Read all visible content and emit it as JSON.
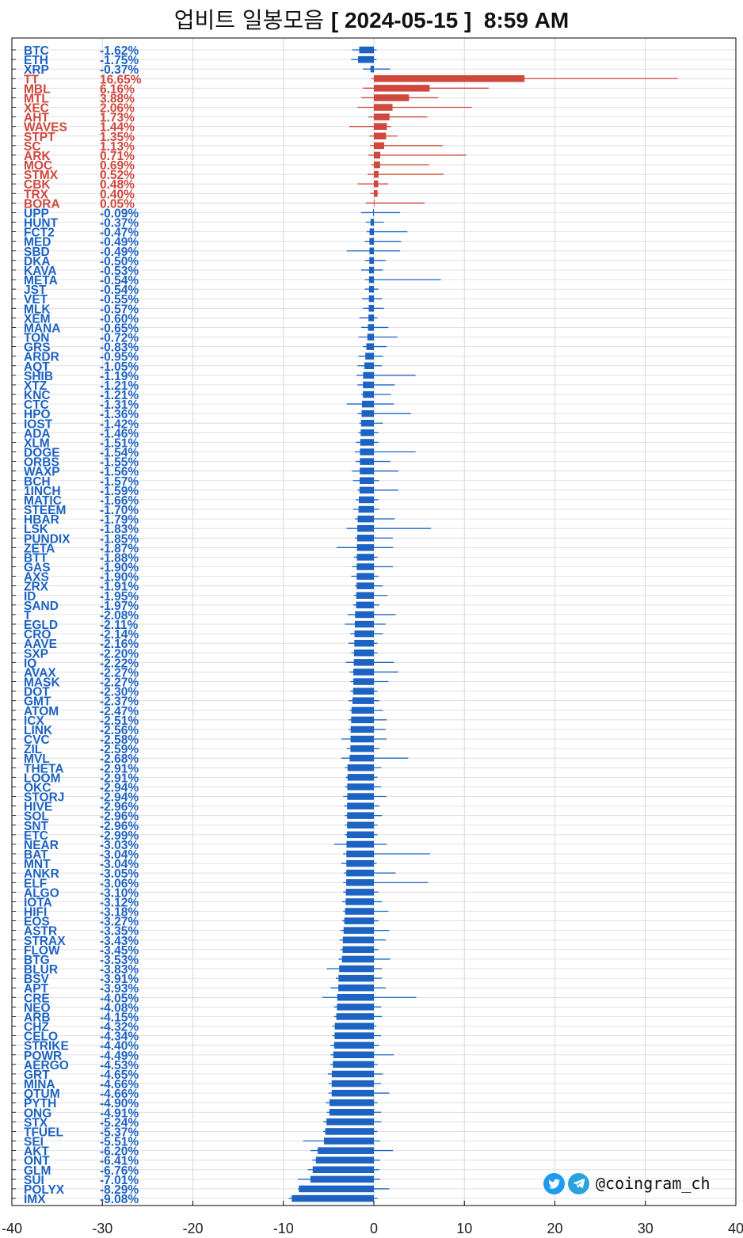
{
  "title": {
    "main": "업비트 일봉모음",
    "bracket_open": "[",
    "date": "2024-05-15",
    "bracket_close": "]",
    "time": "8:59 AM"
  },
  "credit": {
    "handle": "@coingram_ch",
    "icons": [
      "twitter-icon",
      "telegram-icon"
    ]
  },
  "colors": {
    "up": "#d0473d",
    "down": "#1d63c3",
    "grid": "#d9d9d9",
    "axis": "#000000"
  },
  "chart_data": {
    "type": "bar",
    "orientation": "horizontal",
    "xlim": [
      -40,
      40
    ],
    "xticks": [
      -40,
      -30,
      -20,
      -10,
      0,
      10,
      20,
      30,
      40
    ],
    "grid": true,
    "rows": [
      {
        "ticker": "BTC",
        "change": -1.62,
        "low": -2.4,
        "high": 0.3
      },
      {
        "ticker": "ETH",
        "change": -1.75,
        "low": -2.5,
        "high": 0.3
      },
      {
        "ticker": "XRP",
        "change": -0.37,
        "low": -1.2,
        "high": 1.8
      },
      {
        "ticker": "TT",
        "change": 16.65,
        "low": -0.3,
        "high": 33.6
      },
      {
        "ticker": "MBL",
        "change": 6.16,
        "low": -1.2,
        "high": 12.7
      },
      {
        "ticker": "MTL",
        "change": 3.88,
        "low": -1.4,
        "high": 7.1
      },
      {
        "ticker": "XEC",
        "change": 2.06,
        "low": -1.8,
        "high": 10.8
      },
      {
        "ticker": "AHT",
        "change": 1.73,
        "low": -0.6,
        "high": 5.9
      },
      {
        "ticker": "WAVES",
        "change": 1.44,
        "low": -2.7,
        "high": 1.9
      },
      {
        "ticker": "STPT",
        "change": 1.35,
        "low": -0.5,
        "high": 2.6
      },
      {
        "ticker": "SC",
        "change": 1.13,
        "low": -0.4,
        "high": 7.6
      },
      {
        "ticker": "ARK",
        "change": 0.71,
        "low": -0.6,
        "high": 10.2
      },
      {
        "ticker": "MOC",
        "change": 0.69,
        "low": -0.3,
        "high": 6.1
      },
      {
        "ticker": "STMX",
        "change": 0.52,
        "low": -0.7,
        "high": 7.7
      },
      {
        "ticker": "CBK",
        "change": 0.48,
        "low": -1.8,
        "high": 1.6
      },
      {
        "ticker": "TRX",
        "change": 0.4,
        "low": -0.4,
        "high": 0.5
      },
      {
        "ticker": "BORA",
        "change": 0.05,
        "low": -0.9,
        "high": 5.6
      },
      {
        "ticker": "UPP",
        "change": -0.09,
        "low": -1.4,
        "high": 2.9
      },
      {
        "ticker": "HUNT",
        "change": -0.37,
        "low": -0.9,
        "high": 1.1
      },
      {
        "ticker": "FCT2",
        "change": -0.47,
        "low": -0.8,
        "high": 3.7
      },
      {
        "ticker": "MED",
        "change": -0.49,
        "low": -1.0,
        "high": 3.0
      },
      {
        "ticker": "SBD",
        "change": -0.49,
        "low": -3.0,
        "high": 2.9
      },
      {
        "ticker": "DKA",
        "change": -0.5,
        "low": -1.0,
        "high": 1.3
      },
      {
        "ticker": "KAVA",
        "change": -0.53,
        "low": -1.4,
        "high": 1.0
      },
      {
        "ticker": "META",
        "change": -0.54,
        "low": -1.0,
        "high": 7.4
      },
      {
        "ticker": "JST",
        "change": -0.54,
        "low": -1.0,
        "high": 0.5
      },
      {
        "ticker": "VET",
        "change": -0.55,
        "low": -1.3,
        "high": 0.9
      },
      {
        "ticker": "MLK",
        "change": -0.57,
        "low": -1.2,
        "high": 1.1
      },
      {
        "ticker": "XEM",
        "change": -0.6,
        "low": -1.6,
        "high": 0.4
      },
      {
        "ticker": "MANA",
        "change": -0.65,
        "low": -1.4,
        "high": 1.6
      },
      {
        "ticker": "TON",
        "change": -0.72,
        "low": -1.7,
        "high": 2.6
      },
      {
        "ticker": "GRS",
        "change": -0.83,
        "low": -1.2,
        "high": 1.4
      },
      {
        "ticker": "ARDR",
        "change": -0.95,
        "low": -1.7,
        "high": 1.0
      },
      {
        "ticker": "AQT",
        "change": -1.05,
        "low": -1.8,
        "high": 0.9
      },
      {
        "ticker": "SHIB",
        "change": -1.19,
        "low": -1.9,
        "high": 4.6
      },
      {
        "ticker": "XTZ",
        "change": -1.21,
        "low": -1.8,
        "high": 2.3
      },
      {
        "ticker": "KNC",
        "change": -1.21,
        "low": -1.4,
        "high": 1.9
      },
      {
        "ticker": "CTC",
        "change": -1.31,
        "low": -3.0,
        "high": 2.2
      },
      {
        "ticker": "HPO",
        "change": -1.36,
        "low": -1.8,
        "high": 4.1
      },
      {
        "ticker": "IOST",
        "change": -1.42,
        "low": -1.6,
        "high": 1.0
      },
      {
        "ticker": "ADA",
        "change": -1.46,
        "low": -1.7,
        "high": 0.5
      },
      {
        "ticker": "XLM",
        "change": -1.51,
        "low": -2.0,
        "high": 0.5
      },
      {
        "ticker": "DOGE",
        "change": -1.54,
        "low": -2.1,
        "high": 4.6
      },
      {
        "ticker": "ORBS",
        "change": -1.55,
        "low": -2.0,
        "high": 1.8
      },
      {
        "ticker": "WAXP",
        "change": -1.56,
        "low": -2.4,
        "high": 2.7
      },
      {
        "ticker": "BCH",
        "change": -1.57,
        "low": -2.3,
        "high": 0.6
      },
      {
        "ticker": "1INCH",
        "change": -1.59,
        "low": -1.8,
        "high": 2.7
      },
      {
        "ticker": "MATIC",
        "change": -1.66,
        "low": -2.0,
        "high": 0.5
      },
      {
        "ticker": "STEEM",
        "change": -1.7,
        "low": -2.3,
        "high": 0.6
      },
      {
        "ticker": "HBAR",
        "change": -1.79,
        "low": -2.1,
        "high": 2.3
      },
      {
        "ticker": "LSK",
        "change": -1.83,
        "low": -3.0,
        "high": 6.3
      },
      {
        "ticker": "PUNDIX",
        "change": -1.85,
        "low": -2.1,
        "high": 2.1
      },
      {
        "ticker": "ZETA",
        "change": -1.87,
        "low": -4.1,
        "high": 2.1
      },
      {
        "ticker": "BTT",
        "change": -1.88,
        "low": -2.2,
        "high": 0.4
      },
      {
        "ticker": "GAS",
        "change": -1.9,
        "low": -2.4,
        "high": 2.1
      },
      {
        "ticker": "AXS",
        "change": -1.9,
        "low": -2.5,
        "high": 0.5
      },
      {
        "ticker": "ZRX",
        "change": -1.91,
        "low": -2.1,
        "high": 1.0
      },
      {
        "ticker": "ID",
        "change": -1.95,
        "low": -2.2,
        "high": 1.5
      },
      {
        "ticker": "SAND",
        "change": -1.97,
        "low": -2.3,
        "high": 0.6
      },
      {
        "ticker": "T",
        "change": -2.08,
        "low": -2.9,
        "high": 2.4
      },
      {
        "ticker": "EGLD",
        "change": -2.11,
        "low": -3.2,
        "high": 1.3
      },
      {
        "ticker": "CRO",
        "change": -2.14,
        "low": -2.6,
        "high": 1.0
      },
      {
        "ticker": "AAVE",
        "change": -2.16,
        "low": -2.8,
        "high": 0.4
      },
      {
        "ticker": "SXP",
        "change": -2.2,
        "low": -2.5,
        "high": 0.4
      },
      {
        "ticker": "IQ",
        "change": -2.22,
        "low": -3.1,
        "high": 2.2
      },
      {
        "ticker": "AVAX",
        "change": -2.27,
        "low": -2.7,
        "high": 2.7
      },
      {
        "ticker": "MASK",
        "change": -2.27,
        "low": -2.6,
        "high": 1.6
      },
      {
        "ticker": "DOT",
        "change": -2.3,
        "low": -2.6,
        "high": 0.4
      },
      {
        "ticker": "GMT",
        "change": -2.37,
        "low": -2.8,
        "high": 0.6
      },
      {
        "ticker": "ATOM",
        "change": -2.47,
        "low": -2.7,
        "high": 1.0
      },
      {
        "ticker": "ICX",
        "change": -2.51,
        "low": -2.8,
        "high": 1.4
      },
      {
        "ticker": "LINK",
        "change": -2.56,
        "low": -2.8,
        "high": 1.3
      },
      {
        "ticker": "CVC",
        "change": -2.58,
        "low": -3.6,
        "high": 1.4
      },
      {
        "ticker": "ZIL",
        "change": -2.59,
        "low": -3.0,
        "high": 0.6
      },
      {
        "ticker": "MVL",
        "change": -2.68,
        "low": -3.6,
        "high": 3.8
      },
      {
        "ticker": "THETA",
        "change": -2.91,
        "low": -3.2,
        "high": 0.8
      },
      {
        "ticker": "LOOM",
        "change": -2.91,
        "low": -3.1,
        "high": 0.4
      },
      {
        "ticker": "OKC",
        "change": -2.94,
        "low": -3.2,
        "high": 0.8
      },
      {
        "ticker": "STORJ",
        "change": -2.94,
        "low": -3.4,
        "high": 1.4
      },
      {
        "ticker": "HIVE",
        "change": -2.96,
        "low": -3.3,
        "high": 0.6
      },
      {
        "ticker": "SOL",
        "change": -2.96,
        "low": -3.2,
        "high": 0.9
      },
      {
        "ticker": "SNT",
        "change": -2.96,
        "low": -3.2,
        "high": 0.4
      },
      {
        "ticker": "ETC",
        "change": -2.99,
        "low": -3.2,
        "high": 0.4
      },
      {
        "ticker": "NEAR",
        "change": -3.03,
        "low": -4.4,
        "high": 1.4
      },
      {
        "ticker": "BAT",
        "change": -3.04,
        "low": -3.4,
        "high": 6.2
      },
      {
        "ticker": "MNT",
        "change": -3.04,
        "low": -3.6,
        "high": 0.3
      },
      {
        "ticker": "ANKR",
        "change": -3.05,
        "low": -3.3,
        "high": 2.4
      },
      {
        "ticker": "ELF",
        "change": -3.06,
        "low": -3.4,
        "high": 6.0
      },
      {
        "ticker": "ALGO",
        "change": -3.1,
        "low": -3.4,
        "high": 0.5
      },
      {
        "ticker": "IOTA",
        "change": -3.12,
        "low": -3.5,
        "high": 0.9
      },
      {
        "ticker": "HIFI",
        "change": -3.18,
        "low": -3.4,
        "high": 1.6
      },
      {
        "ticker": "EOS",
        "change": -3.27,
        "low": -3.5,
        "high": 0.5
      },
      {
        "ticker": "ASTR",
        "change": -3.35,
        "low": -3.7,
        "high": 1.7
      },
      {
        "ticker": "STRAX",
        "change": -3.43,
        "low": -3.8,
        "high": 1.3
      },
      {
        "ticker": "FLOW",
        "change": -3.45,
        "low": -3.7,
        "high": 0.5
      },
      {
        "ticker": "BTG",
        "change": -3.53,
        "low": -3.9,
        "high": 1.8
      },
      {
        "ticker": "BLUR",
        "change": -3.83,
        "low": -5.2,
        "high": 0.9
      },
      {
        "ticker": "BSV",
        "change": -3.91,
        "low": -4.2,
        "high": 0.9
      },
      {
        "ticker": "APT",
        "change": -3.93,
        "low": -4.8,
        "high": 1.3
      },
      {
        "ticker": "CRE",
        "change": -4.05,
        "low": -5.7,
        "high": 4.7
      },
      {
        "ticker": "NEO",
        "change": -4.08,
        "low": -4.4,
        "high": 0.8
      },
      {
        "ticker": "ARB",
        "change": -4.15,
        "low": -4.4,
        "high": 0.9
      },
      {
        "ticker": "CHZ",
        "change": -4.32,
        "low": -4.6,
        "high": 0.3
      },
      {
        "ticker": "CELO",
        "change": -4.34,
        "low": -4.6,
        "high": 0.8
      },
      {
        "ticker": "STRIKE",
        "change": -4.4,
        "low": -4.8,
        "high": 0.6
      },
      {
        "ticker": "POWR",
        "change": -4.49,
        "low": -4.8,
        "high": 2.2
      },
      {
        "ticker": "AERGO",
        "change": -4.53,
        "low": -4.8,
        "high": 0.4
      },
      {
        "ticker": "GRT",
        "change": -4.65,
        "low": -5.1,
        "high": 1.0
      },
      {
        "ticker": "MINA",
        "change": -4.66,
        "low": -5.0,
        "high": 0.8
      },
      {
        "ticker": "QTUM",
        "change": -4.66,
        "low": -5.0,
        "high": 1.7
      },
      {
        "ticker": "PYTH",
        "change": -4.9,
        "low": -5.3,
        "high": 0.4
      },
      {
        "ticker": "ONG",
        "change": -4.91,
        "low": -5.2,
        "high": 0.8
      },
      {
        "ticker": "STX",
        "change": -5.24,
        "low": -5.6,
        "high": 0.8
      },
      {
        "ticker": "TFUEL",
        "change": -5.37,
        "low": -5.6,
        "high": 0.4
      },
      {
        "ticker": "SEI",
        "change": -5.51,
        "low": -7.8,
        "high": 0.7
      },
      {
        "ticker": "AKT",
        "change": -6.2,
        "low": -7.0,
        "high": 2.1
      },
      {
        "ticker": "ONT",
        "change": -6.41,
        "low": -6.8,
        "high": 0.7
      },
      {
        "ticker": "GLM",
        "change": -6.76,
        "low": -7.3,
        "high": 0.6
      },
      {
        "ticker": "SUI",
        "change": -7.01,
        "low": -8.4,
        "high": 0.7
      },
      {
        "ticker": "POLYX",
        "change": -8.29,
        "low": -8.4,
        "high": 1.7
      },
      {
        "ticker": "IMX",
        "change": -9.08,
        "low": -9.4,
        "high": 0.4
      }
    ]
  }
}
